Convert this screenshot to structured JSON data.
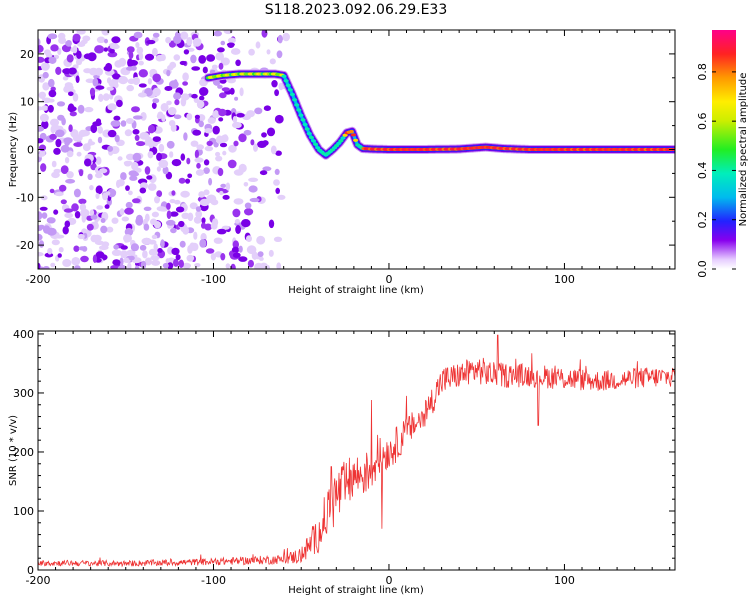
{
  "title": "S118.2023.092.06.29.E33",
  "chart_data": [
    {
      "type": "heatmap",
      "name": "spectrogram",
      "xlabel": "Height of straight line (km)",
      "ylabel": "Frequency (Hz)",
      "xlim": [
        -200,
        163
      ],
      "ylim": [
        -25,
        25
      ],
      "xticks": [
        -200,
        -100,
        0,
        100
      ],
      "xtick_labels": [
        "-200",
        "-100",
        "0",
        "100"
      ],
      "yticks": [
        -20,
        -10,
        0,
        10,
        20
      ],
      "ytick_labels": [
        "-20",
        "-10",
        "0",
        "10",
        "20"
      ],
      "noise_region_x": [
        -200,
        -58
      ],
      "trace": {
        "x": [
          -103,
          -95,
          -85,
          -75,
          -65,
          -60,
          -55,
          -50,
          -45,
          -40,
          -36,
          -32,
          -28,
          -24,
          -21,
          -18,
          -15,
          -10,
          0,
          20,
          40,
          55,
          65,
          80,
          100,
          130,
          163
        ],
        "y": [
          15,
          15.5,
          15.8,
          15.8,
          15.8,
          15.5,
          11.5,
          7,
          3,
          0,
          -1.2,
          0,
          1.5,
          3.5,
          3.8,
          1,
          0.2,
          0.1,
          0,
          0,
          0.1,
          0.5,
          0.2,
          0,
          0,
          0,
          0
        ]
      },
      "colorbar": {
        "label": "Normalized spectral amplitude",
        "range": [
          0,
          0.97
        ],
        "ticks": [
          0.0,
          0.2,
          0.4,
          0.6,
          0.8
        ],
        "tick_labels": [
          "0.0",
          "0.2",
          "0.4",
          "0.6",
          "0.8"
        ]
      }
    },
    {
      "type": "line",
      "name": "snr",
      "xlabel": "Height of straight line (km)",
      "ylabel": "SNR (10 * v/v)",
      "xlim": [
        -200,
        163
      ],
      "ylim": [
        0,
        405
      ],
      "xticks": [
        -200,
        -100,
        0,
        100
      ],
      "xtick_labels": [
        "-200",
        "-100",
        "0",
        "100"
      ],
      "yticks": [
        0,
        100,
        200,
        300,
        400
      ],
      "ytick_labels": [
        "0",
        "100",
        "200",
        "300",
        "400"
      ],
      "color": "#ee3333",
      "series": [
        {
          "name": "SNR",
          "x": [
            -200,
            -150,
            -100,
            -60,
            -50,
            -40,
            -35,
            -30,
            -25,
            -20,
            -15,
            -10,
            -5,
            0,
            5,
            10,
            20,
            25,
            30,
            40,
            50,
            60,
            80,
            100,
            120,
            140,
            163
          ],
          "y": [
            12,
            11,
            14,
            18,
            25,
            60,
            100,
            125,
            140,
            160,
            160,
            170,
            195,
            200,
            215,
            235,
            260,
            290,
            320,
            330,
            340,
            330,
            330,
            325,
            320,
            325,
            328
          ],
          "noise_amplitude": [
            5,
            5,
            6,
            8,
            15,
            30,
            45,
            50,
            45,
            40,
            35,
            40,
            30,
            30,
            30,
            25,
            25,
            25,
            25,
            22,
            25,
            22,
            20,
            20,
            18,
            18,
            18
          ],
          "spikes": [
            {
              "x": -33,
              "y": 175
            },
            {
              "x": -10,
              "y": 288
            },
            {
              "x": -4,
              "y": 70
            },
            {
              "x": 10,
              "y": 295
            },
            {
              "x": 62,
              "y": 398
            },
            {
              "x": 85,
              "y": 245
            }
          ]
        }
      ]
    }
  ]
}
